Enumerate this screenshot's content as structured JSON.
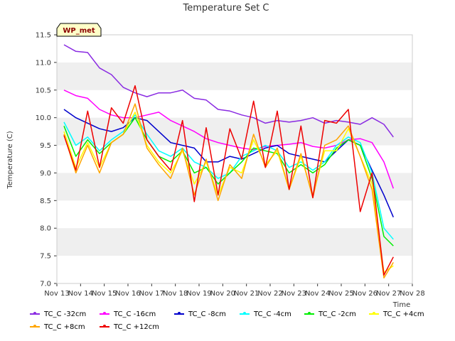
{
  "chart_data": {
    "type": "line",
    "title": "Temperature Set C",
    "xlabel": "Time",
    "ylabel": "Temperature (C)",
    "annotation": "WP_met",
    "xlim": [
      13,
      28
    ],
    "ylim": [
      7.0,
      11.5
    ],
    "xticks": [
      "Nov 13",
      "Nov 14",
      "Nov 15",
      "Nov 16",
      "Nov 17",
      "Nov 18",
      "Nov 19",
      "Nov 20",
      "Nov 21",
      "Nov 22",
      "Nov 23",
      "Nov 24",
      "Nov 25",
      "Nov 26",
      "Nov 27",
      "Nov 28"
    ],
    "yticks": [
      "7.0",
      "7.5",
      "8.0",
      "8.5",
      "9.0",
      "9.5",
      "10.0",
      "10.5",
      "11.0",
      "11.5"
    ],
    "legend_position": "bottom",
    "grid": "horizontal bands",
    "x": [
      13.3,
      13.8,
      14.3,
      14.8,
      15.3,
      15.8,
      16.3,
      16.8,
      17.3,
      17.8,
      18.3,
      18.8,
      19.3,
      19.8,
      20.3,
      20.8,
      21.3,
      21.8,
      22.3,
      22.8,
      23.3,
      23.8,
      24.3,
      24.8,
      25.3,
      25.8,
      26.3,
      26.8,
      27.2
    ],
    "series": [
      {
        "name": "TC_C -32cm",
        "color": "#8a2be2",
        "values": [
          11.32,
          11.2,
          11.18,
          10.9,
          10.78,
          10.55,
          10.45,
          10.38,
          10.45,
          10.45,
          10.5,
          10.35,
          10.32,
          10.15,
          10.12,
          10.05,
          10.0,
          9.9,
          9.95,
          9.92,
          9.95,
          10.0,
          9.9,
          9.95,
          9.92,
          9.88,
          10.0,
          9.88,
          9.65
        ]
      },
      {
        "name": "TC_C -16cm",
        "color": "#ff00ff",
        "values": [
          10.5,
          10.4,
          10.35,
          10.15,
          10.05,
          10.0,
          10.0,
          10.05,
          10.1,
          9.95,
          9.85,
          9.75,
          9.62,
          9.55,
          9.5,
          9.45,
          9.42,
          9.48,
          9.5,
          9.52,
          9.55,
          9.48,
          9.45,
          9.5,
          9.6,
          9.62,
          9.55,
          9.2,
          8.72
        ]
      },
      {
        "name": "TC_C -8cm",
        "color": "#0000cc",
        "values": [
          10.15,
          10.0,
          9.9,
          9.8,
          9.75,
          9.82,
          10.0,
          9.95,
          9.75,
          9.55,
          9.5,
          9.45,
          9.2,
          9.2,
          9.3,
          9.25,
          9.35,
          9.45,
          9.5,
          9.35,
          9.3,
          9.25,
          9.2,
          9.4,
          9.6,
          9.5,
          9.05,
          8.6,
          8.2
        ]
      },
      {
        "name": "TC_C -4cm",
        "color": "#00ffff",
        "values": [
          9.92,
          9.5,
          9.65,
          9.4,
          9.6,
          9.75,
          10.05,
          9.7,
          9.4,
          9.3,
          9.45,
          9.2,
          9.1,
          8.9,
          9.0,
          9.3,
          9.4,
          9.5,
          9.4,
          9.1,
          9.2,
          9.05,
          9.2,
          9.5,
          9.65,
          9.55,
          9.0,
          8.0,
          7.8
        ]
      },
      {
        "name": "TC_C -2cm",
        "color": "#00ee00",
        "values": [
          9.85,
          9.3,
          9.6,
          9.35,
          9.55,
          9.7,
          10.0,
          9.6,
          9.3,
          9.2,
          9.4,
          9.0,
          9.1,
          8.8,
          9.0,
          9.2,
          9.45,
          9.4,
          9.35,
          9.0,
          9.15,
          9.0,
          9.15,
          9.45,
          9.6,
          9.5,
          8.9,
          7.85,
          7.68
        ]
      },
      {
        "name": "TC_C +4cm",
        "color": "#ffff00",
        "values": [
          9.75,
          9.1,
          9.55,
          9.1,
          9.55,
          9.7,
          10.1,
          9.5,
          9.2,
          9.0,
          9.4,
          8.8,
          9.2,
          8.6,
          9.1,
          9.0,
          9.6,
          9.15,
          9.4,
          8.7,
          9.3,
          8.6,
          9.4,
          9.4,
          9.8,
          9.3,
          8.8,
          7.2,
          7.32
        ]
      },
      {
        "name": "TC_C +8cm",
        "color": "#ffa500",
        "values": [
          9.7,
          9.0,
          9.5,
          9.0,
          9.55,
          9.7,
          10.25,
          9.45,
          9.15,
          8.9,
          9.45,
          8.6,
          9.25,
          8.5,
          9.15,
          8.9,
          9.7,
          9.1,
          9.45,
          8.7,
          9.35,
          8.55,
          9.5,
          9.6,
          9.85,
          9.3,
          8.7,
          7.1,
          7.38
        ]
      },
      {
        "name": "TC_C +12cm",
        "color": "#ee0000",
        "values": [
          9.68,
          9.05,
          10.12,
          9.1,
          10.18,
          9.9,
          10.58,
          9.6,
          9.3,
          9.05,
          9.95,
          8.48,
          9.82,
          8.6,
          9.8,
          9.25,
          10.3,
          9.1,
          10.12,
          8.7,
          9.85,
          8.55,
          9.95,
          9.9,
          10.15,
          8.3,
          9.0,
          7.15,
          7.48
        ]
      }
    ]
  }
}
